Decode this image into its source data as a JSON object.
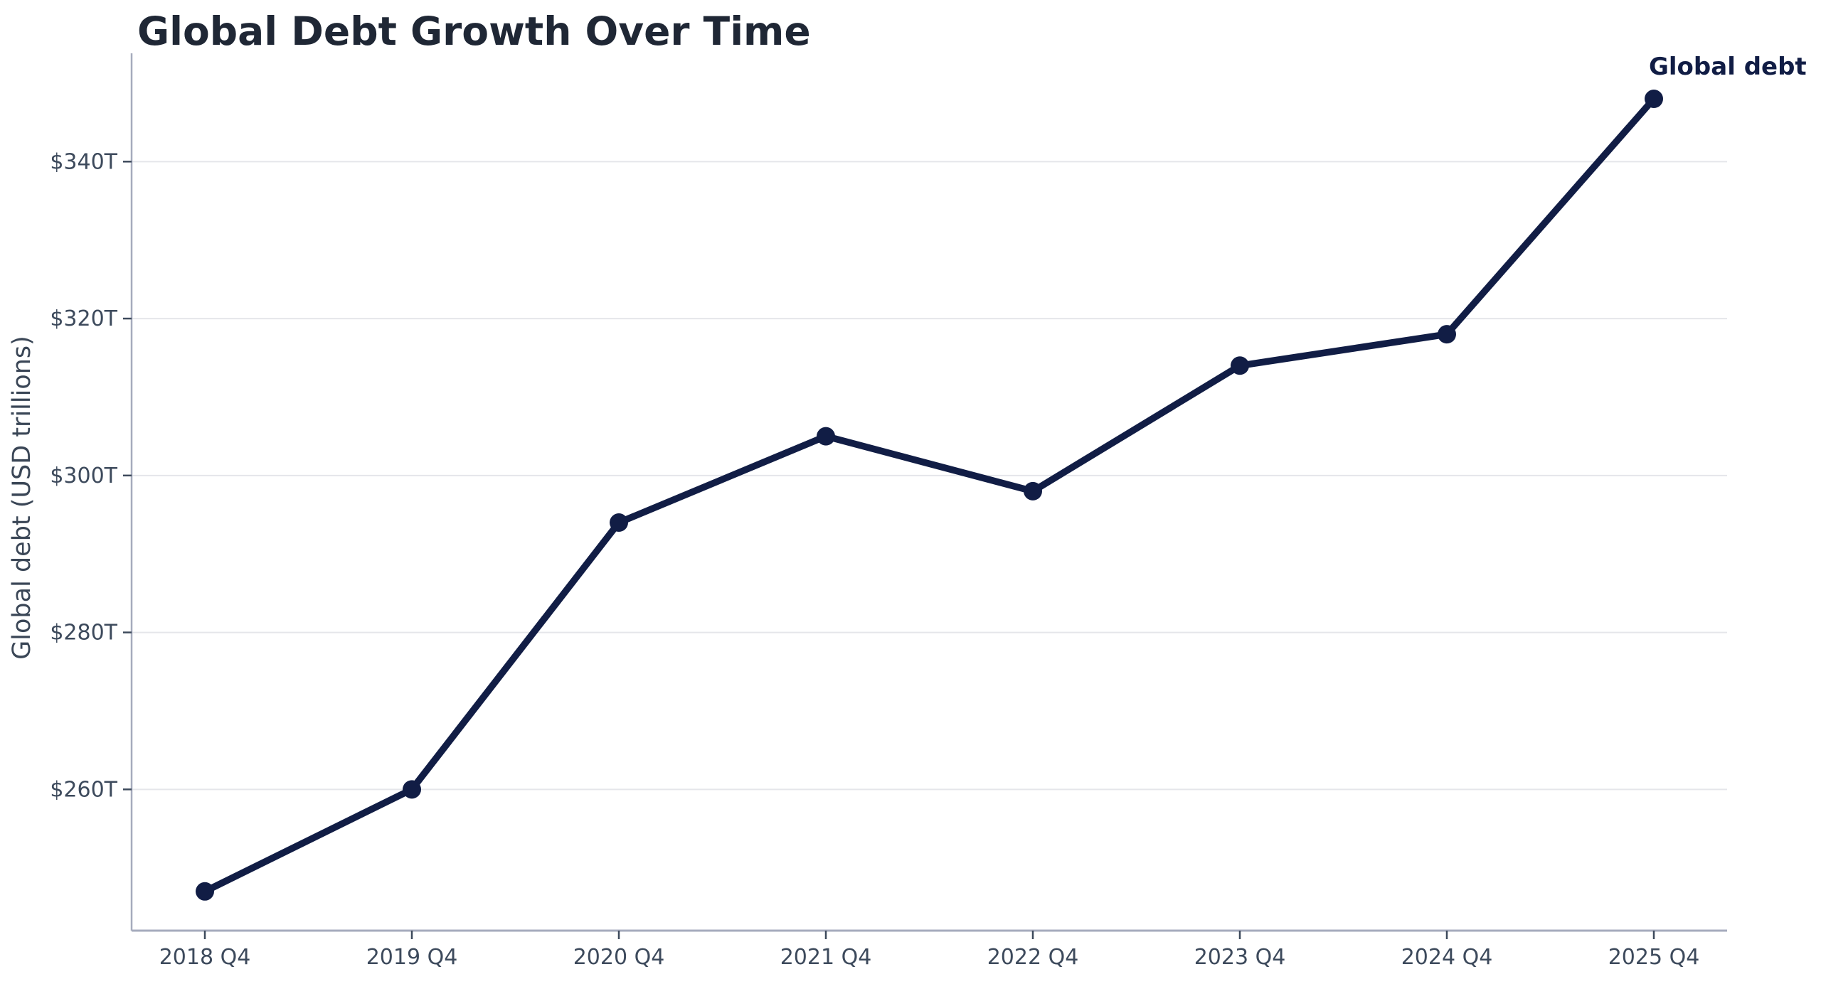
{
  "title": "Global Debt Growth Over Time",
  "y_axis_title": "Global debt (USD trillions)",
  "series_label": "Global debt",
  "chart_data": {
    "type": "line",
    "title": "Global Debt Growth Over Time",
    "categories": [
      "2018 Q4",
      "2019 Q4",
      "2020 Q4",
      "2021 Q4",
      "2022 Q4",
      "2023 Q4",
      "2024 Q4",
      "2025 Q4"
    ],
    "series": [
      {
        "name": "Global debt",
        "values": [
          247,
          260,
          294,
          305,
          298,
          314,
          318,
          348
        ]
      }
    ],
    "xlabel": "",
    "ylabel": "Global debt (USD trillions)",
    "unit": "USD trillions",
    "y_ticks": [
      {
        "value": 260,
        "label": "$260T"
      },
      {
        "value": 280,
        "label": "$280T"
      },
      {
        "value": 300,
        "label": "$300T"
      },
      {
        "value": 320,
        "label": "$320T"
      },
      {
        "value": 340,
        "label": "$340T"
      }
    ],
    "ylim": [
      242,
      353.8
    ],
    "grid": "horizontal",
    "legend_position": "annotation-at-last-point",
    "annotation": "Global debt",
    "colors": {
      "line": "#111d45",
      "marker": "#111d45",
      "title": "#1f2735",
      "tick_labels": "#3d4a5c",
      "axis_label": "#3a4656",
      "gridline": "#e5e6ea",
      "axis": "#a6abbd",
      "background": "#ffffff"
    }
  }
}
